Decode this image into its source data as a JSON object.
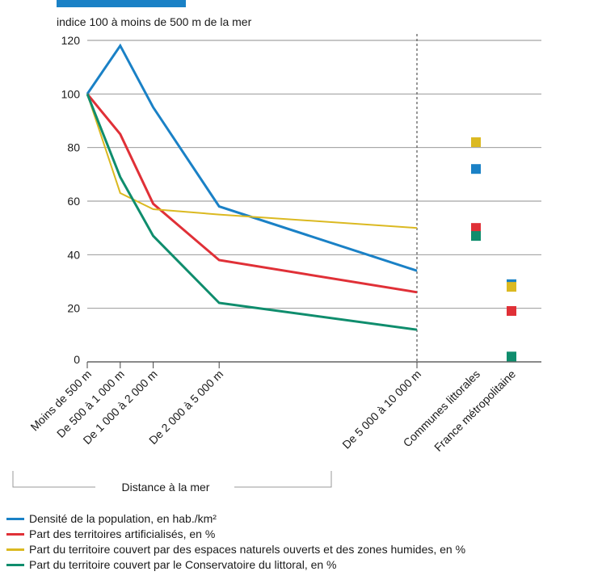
{
  "chart_data": {
    "type": "line",
    "title": "",
    "subtitle": "indice 100 à moins de 500 m de la mer",
    "xlabel": "Distance à la mer",
    "ylabel": "",
    "ylim": [
      0,
      120
    ],
    "yticks": [
      0,
      20,
      40,
      60,
      80,
      100,
      120
    ],
    "grid": true,
    "legend_position": "bottom",
    "categories": [
      "Moins de 500 m",
      "De 500 à 1 000 m",
      "De 1 000 à 2 000 m",
      "De 2 000 à 5 000 m",
      "De 5 000 à 10 000 m"
    ],
    "x_distance_m": [
      0,
      500,
      1000,
      2000,
      5000
    ],
    "reference_categories": [
      "Communes littorales",
      "France métropolitaine"
    ],
    "series": [
      {
        "name": "Densité de la population, en hab./km²",
        "color": "#1a81c6",
        "values": [
          100,
          118,
          95,
          58,
          34
        ],
        "reference": [
          72,
          29
        ]
      },
      {
        "name": "Part des territoires artificialisés, en %",
        "color": "#e03037",
        "values": [
          100,
          85,
          59,
          38,
          26
        ],
        "reference": [
          50,
          19
        ]
      },
      {
        "name": "Part du territoire couvert par des espaces naturels ouverts et des zones humides, en %",
        "color": "#dbb921",
        "values": [
          100,
          63,
          57,
          55,
          50
        ],
        "reference": [
          82,
          28
        ]
      },
      {
        "name": "Part du territoire couvert par le Conservatoire du littoral, en %",
        "color": "#0f8d6d",
        "values": [
          100,
          69,
          47,
          22,
          12
        ],
        "reference": [
          47,
          2
        ]
      }
    ]
  }
}
